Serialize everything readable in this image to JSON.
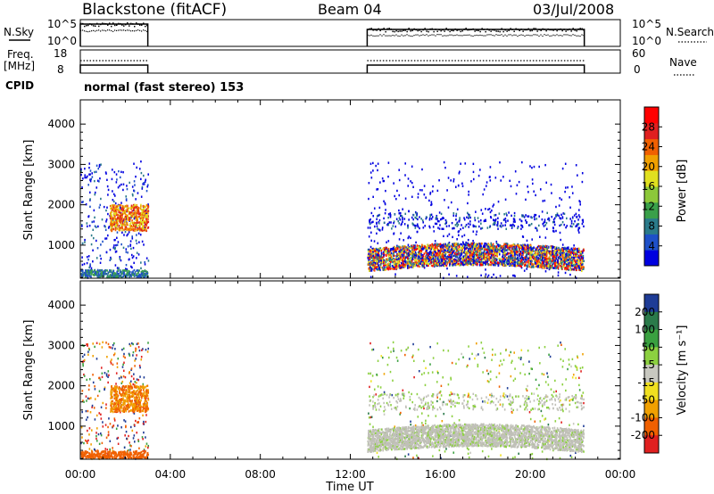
{
  "header": {
    "station": "Blackstone (fitACF)",
    "beam": "Beam 04",
    "date": "03/Jul/2008"
  },
  "strip_labels": {
    "nsky": "N.Sky",
    "freq_line1": "Freq.",
    "freq_line2": "[MHz]",
    "cpid": "CPID",
    "nsearch": "N.Search",
    "nave": "Nave",
    "nsky_ticks": [
      "10^5",
      "10^0"
    ],
    "nsearch_ticks": [
      "10^5",
      "10^0"
    ],
    "freq_ticks": [
      "18",
      "8"
    ],
    "nave_ticks": [
      "60",
      "0"
    ]
  },
  "cpid_text": "normal (fast stereo) 153",
  "chart_data": [
    {
      "type": "heatmap",
      "name": "power",
      "ylabel": "Slant Range [km]",
      "ylim": [
        180,
        4600
      ],
      "yticks": [
        "1000",
        "2000",
        "3000",
        "4000"
      ],
      "xlim": [
        0,
        24
      ],
      "colorbar": {
        "label": "Power [dB]",
        "ticks": [
          "4",
          "8",
          "12",
          "16",
          "20",
          "24",
          "28"
        ],
        "colors": [
          "#0000e0",
          "#1e50c8",
          "#2a7a8a",
          "#3aa04a",
          "#8cc83a",
          "#e0e020",
          "#f0a000",
          "#f06000",
          "#e02020",
          "#ff0000"
        ]
      },
      "data_windows_hours": [
        [
          0.0,
          3.0
        ],
        [
          12.75,
          22.4
        ]
      ]
    },
    {
      "type": "heatmap",
      "name": "velocity",
      "ylabel": "Slant Range [km]",
      "ylim": [
        180,
        4600
      ],
      "yticks": [
        "1000",
        "2000",
        "3000",
        "4000"
      ],
      "xlim": [
        0,
        24
      ],
      "colorbar": {
        "label": "Velocity [m s⁻¹]",
        "ticks": [
          "200",
          "100",
          "50",
          "15",
          "-15",
          "-50",
          "-100",
          "-200"
        ],
        "colors": [
          "#1e3c96",
          "#2a7a4a",
          "#3aa040",
          "#8cd040",
          "#c8c8c0",
          "#f0e020",
          "#f0a000",
          "#f06000",
          "#e02020"
        ]
      },
      "data_windows_hours": [
        [
          0.0,
          3.0
        ],
        [
          12.75,
          22.4
        ]
      ]
    }
  ],
  "x_axis": {
    "ticks": [
      "00:00",
      "04:00",
      "08:00",
      "12:00",
      "16:00",
      "20:00",
      "00:00"
    ],
    "label": "Time UT"
  },
  "colors": {
    "axis": "#000000",
    "ground_scatter": "#c0c0b8"
  }
}
